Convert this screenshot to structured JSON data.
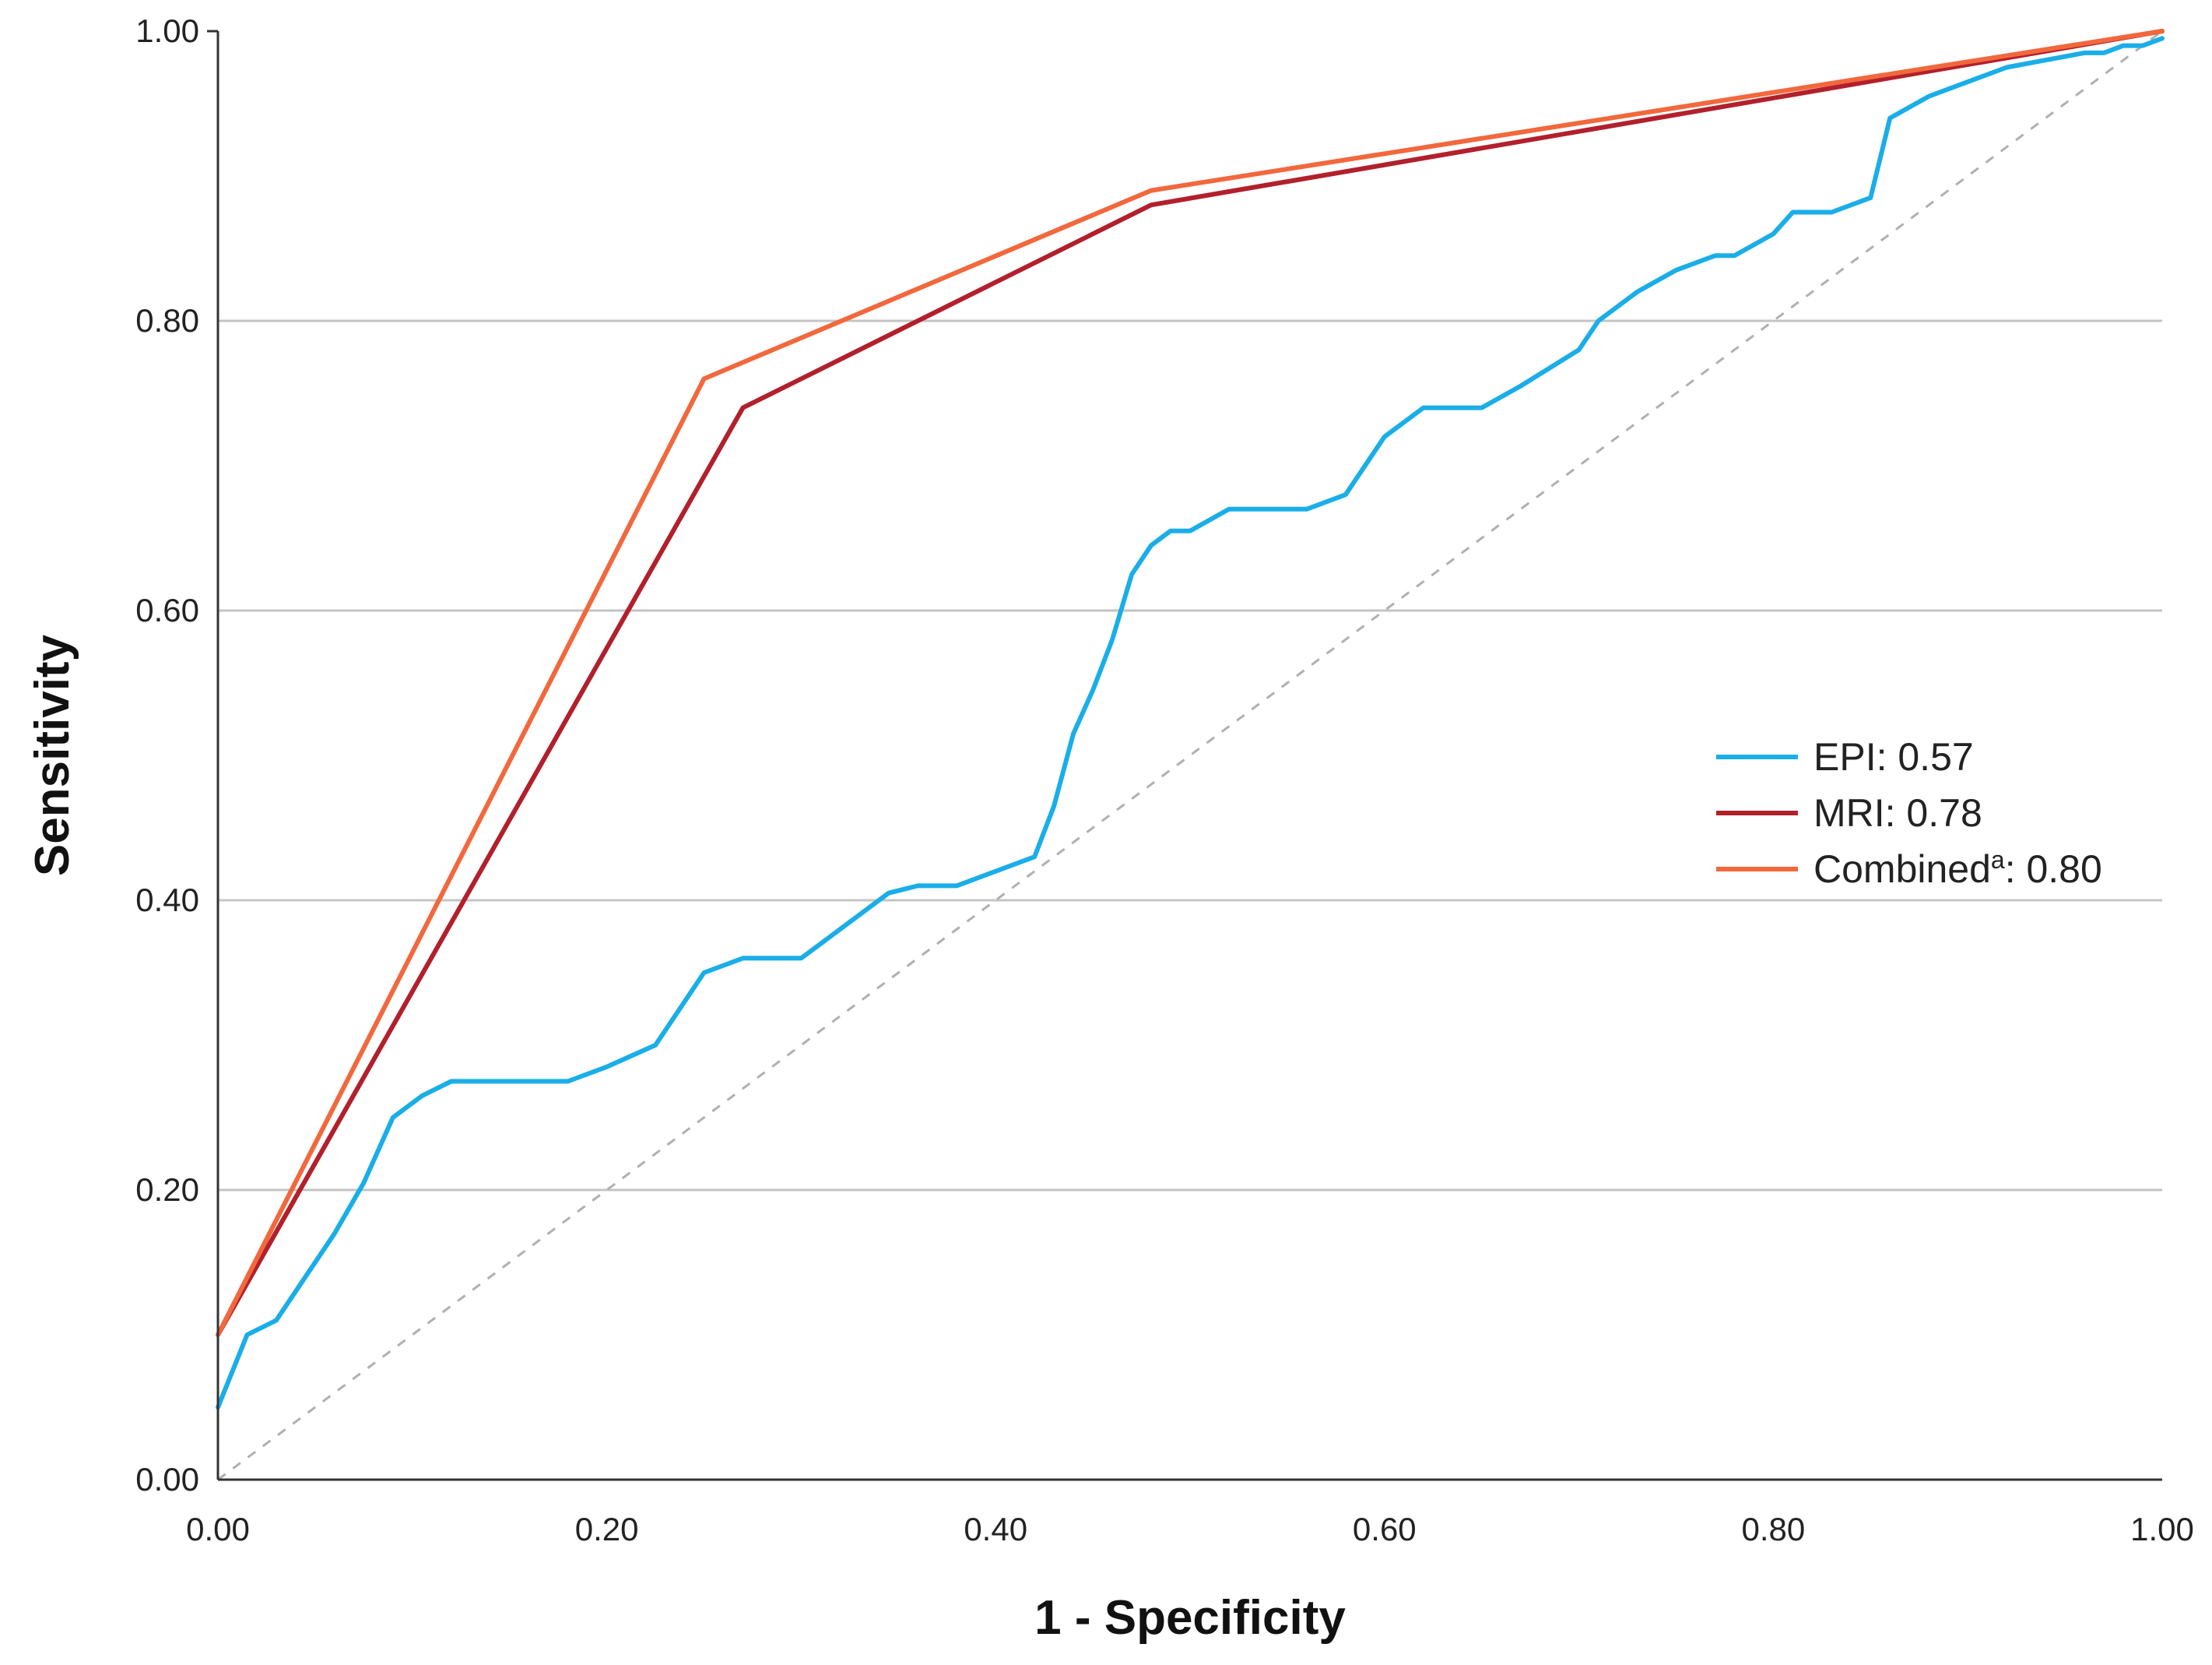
{
  "chart_data": {
    "type": "line",
    "xlabel": "1 - Specificity",
    "ylabel": "Sensitivity",
    "xlim": [
      0,
      1
    ],
    "ylim": [
      0,
      1
    ],
    "x_ticks": [
      "0.00",
      "0.20",
      "0.40",
      "0.60",
      "0.80",
      "1.00"
    ],
    "y_ticks": [
      "0.00",
      "0.20",
      "0.40",
      "0.60",
      "0.80",
      "1.00"
    ],
    "grid": "horizontal",
    "legend_position": "right",
    "reference_line": {
      "style": "dashed",
      "color": "#b0b0b0",
      "x": [
        0,
        1
      ],
      "y": [
        0,
        1
      ]
    },
    "series": [
      {
        "legend_label": "EPI: 0.57",
        "color": "#1aaee8",
        "x": [
          0.0,
          0.015,
          0.03,
          0.045,
          0.06,
          0.075,
          0.09,
          0.105,
          0.12,
          0.15,
          0.18,
          0.2,
          0.225,
          0.25,
          0.27,
          0.29,
          0.3,
          0.31,
          0.33,
          0.345,
          0.36,
          0.38,
          0.4,
          0.42,
          0.43,
          0.44,
          0.45,
          0.46,
          0.47,
          0.48,
          0.49,
          0.5,
          0.52,
          0.54,
          0.56,
          0.58,
          0.6,
          0.62,
          0.63,
          0.64,
          0.65,
          0.67,
          0.7,
          0.71,
          0.72,
          0.73,
          0.75,
          0.77,
          0.78,
          0.8,
          0.81,
          0.83,
          0.85,
          0.86,
          0.88,
          0.9,
          0.92,
          0.94,
          0.96,
          0.97,
          0.98,
          0.99,
          1.0
        ],
        "y": [
          0.05,
          0.1,
          0.11,
          0.14,
          0.17,
          0.205,
          0.25,
          0.265,
          0.275,
          0.275,
          0.275,
          0.285,
          0.3,
          0.35,
          0.36,
          0.36,
          0.36,
          0.37,
          0.39,
          0.405,
          0.41,
          0.41,
          0.42,
          0.43,
          0.465,
          0.515,
          0.545,
          0.58,
          0.625,
          0.645,
          0.655,
          0.655,
          0.67,
          0.67,
          0.67,
          0.68,
          0.72,
          0.74,
          0.74,
          0.74,
          0.74,
          0.755,
          0.78,
          0.8,
          0.81,
          0.82,
          0.835,
          0.845,
          0.845,
          0.86,
          0.875,
          0.875,
          0.885,
          0.94,
          0.955,
          0.965,
          0.975,
          0.98,
          0.985,
          0.985,
          0.99,
          0.99,
          0.995
        ]
      },
      {
        "legend_label": "MRI: 0.78",
        "color": "#b2202c",
        "x": [
          0.0,
          0.27,
          0.48,
          1.0
        ],
        "y": [
          0.1,
          0.74,
          0.88,
          1.0
        ]
      },
      {
        "legend_label": "Combined",
        "legend_superscript": "a",
        "legend_suffix": ": 0.80",
        "color": "#f2683d",
        "x": [
          0.0,
          0.25,
          0.48,
          1.0
        ],
        "y": [
          0.1,
          0.76,
          0.89,
          1.0
        ]
      }
    ]
  }
}
